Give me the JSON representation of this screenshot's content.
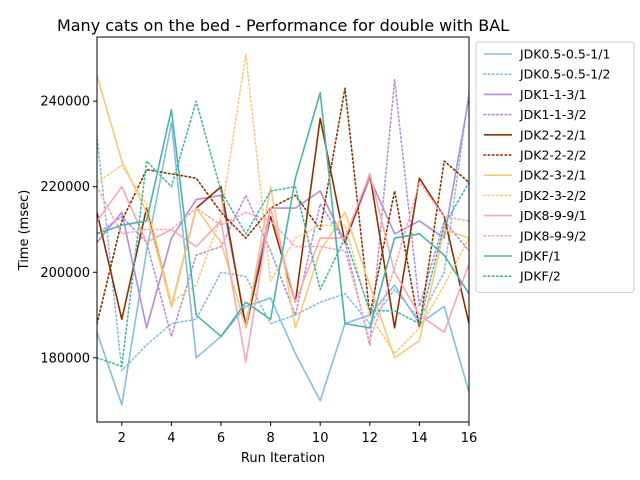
{
  "chart_data": {
    "type": "line",
    "title": "Many cats on the bed - Performance for double with BAL",
    "xlabel": "Run Iteration",
    "ylabel": "Time (msec)",
    "xlim": [
      1,
      16
    ],
    "ylim": [
      165000,
      255000
    ],
    "xticks": [
      2,
      4,
      6,
      8,
      10,
      12,
      14,
      16
    ],
    "yticks": [
      180000,
      200000,
      220000,
      240000
    ],
    "grid": false,
    "legend_position": "outside-right-top",
    "x": [
      1,
      2,
      3,
      4,
      5,
      6,
      7,
      8,
      9,
      10,
      11,
      12,
      13,
      14,
      15,
      16
    ],
    "series": [
      {
        "name": "JDK0.5-0.5-1/1",
        "color": "#88bde0",
        "style": "solid",
        "values": [
          186000,
          169000,
          205000,
          235000,
          180000,
          185000,
          192000,
          194000,
          181000,
          170000,
          188000,
          190000,
          197000,
          188000,
          192000,
          172000
        ]
      },
      {
        "name": "JDK0.5-0.5-1/2",
        "color": "#88bde0",
        "style": "dotted",
        "values": [
          232000,
          177000,
          183000,
          188000,
          189000,
          200000,
          199000,
          188000,
          190000,
          193000,
          195000,
          188000,
          196000,
          189000,
          200000,
          242000
        ]
      },
      {
        "name": "JDK1-1-3/1",
        "color": "#b48ed6",
        "style": "solid",
        "values": [
          207000,
          214000,
          187000,
          208000,
          217000,
          218000,
          188000,
          215000,
          215000,
          219000,
          207000,
          222000,
          209000,
          212000,
          208000,
          241000
        ]
      },
      {
        "name": "JDK1-1-3/2",
        "color": "#b48ed6",
        "style": "dotted",
        "values": [
          209000,
          213000,
          207000,
          185000,
          204000,
          206000,
          218000,
          205000,
          190000,
          216000,
          207000,
          183000,
          245000,
          192000,
          212000,
          205000
        ]
      },
      {
        "name": "JDK2-2-2/1",
        "color": "#8b3200",
        "style": "solid",
        "values": [
          214000,
          189000,
          215000,
          192000,
          215000,
          220000,
          187000,
          213000,
          193000,
          236000,
          207000,
          223000,
          187000,
          222000,
          213000,
          188000
        ]
      },
      {
        "name": "JDK2-2-2/2",
        "color": "#8b3200",
        "style": "dotted",
        "values": [
          188000,
          212000,
          224000,
          223000,
          222000,
          214000,
          208000,
          215000,
          218000,
          210000,
          243000,
          190000,
          219000,
          187000,
          226000,
          221000
        ]
      },
      {
        "name": "JDK2-3-2/1",
        "color": "#fbc87c",
        "style": "solid",
        "values": [
          246000,
          226000,
          214000,
          192000,
          215000,
          207000,
          187000,
          220000,
          187000,
          205000,
          214000,
          197000,
          180000,
          184000,
          210000,
          208000
        ]
      },
      {
        "name": "JDK2-3-2/2",
        "color": "#fbc87c",
        "style": "dotted",
        "values": [
          221000,
          225000,
          216000,
          193000,
          197000,
          213000,
          251000,
          198000,
          208000,
          211000,
          211000,
          190000,
          181000,
          187000,
          197000,
          208000
        ]
      },
      {
        "name": "JDK8-9-9/1",
        "color": "#f9a8b8",
        "style": "solid",
        "values": [
          212000,
          220000,
          207000,
          210000,
          206000,
          212000,
          179000,
          215000,
          193000,
          208000,
          208000,
          223000,
          200000,
          190000,
          186000,
          202000
        ]
      },
      {
        "name": "JDK8-9-9/2",
        "color": "#f9a8b8",
        "style": "dotted",
        "values": [
          220000,
          209000,
          210000,
          210000,
          215000,
          211000,
          214000,
          212000,
          206000,
          206000,
          205000,
          184000,
          201000,
          221000,
          213000,
          212000
        ]
      },
      {
        "name": "JDKF/1",
        "color": "#4db3a8",
        "style": "solid",
        "values": [
          209000,
          211000,
          212000,
          238000,
          190000,
          185000,
          193000,
          189000,
          222000,
          242000,
          188000,
          187000,
          208000,
          209000,
          204000,
          195000
        ]
      },
      {
        "name": "JDKF/2",
        "color": "#4db3a8",
        "style": "dotted",
        "values": [
          180000,
          178000,
          226000,
          220000,
          240000,
          219000,
          209000,
          219000,
          220000,
          196000,
          208000,
          191000,
          191000,
          188000,
          211000,
          221000
        ]
      }
    ]
  }
}
